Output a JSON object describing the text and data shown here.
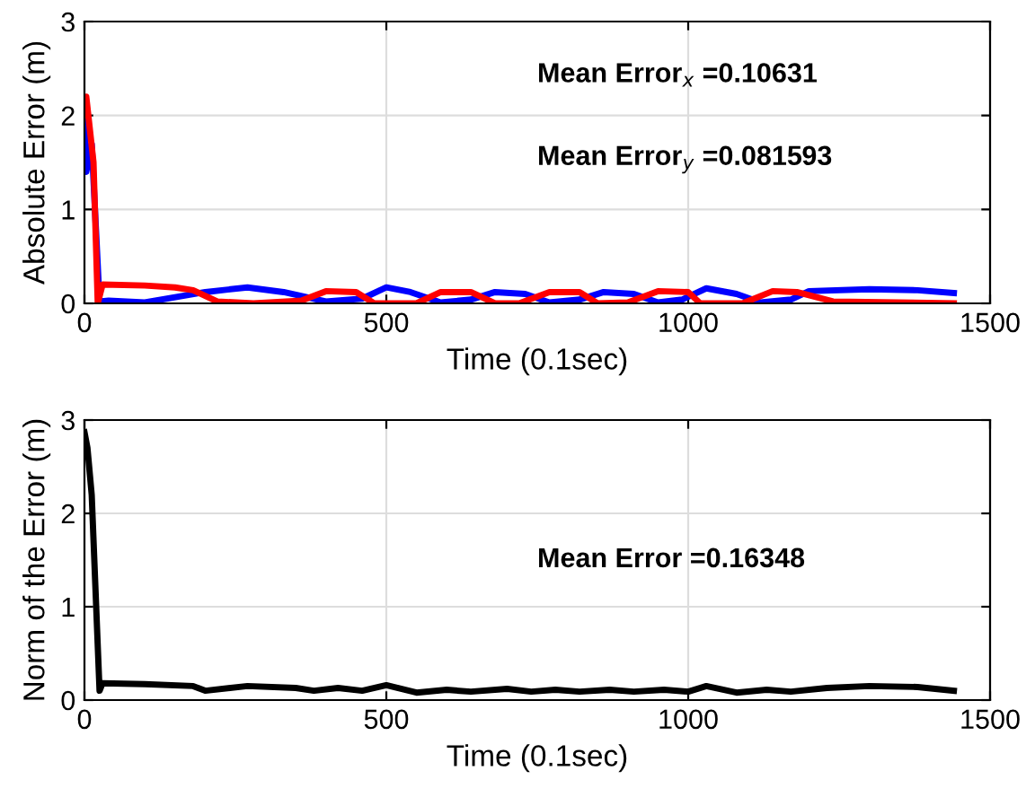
{
  "chart_data": [
    {
      "type": "line",
      "xlabel": "Time (0.1sec)",
      "ylabel": "Absolute Error (m)",
      "xlim": [
        0,
        1500
      ],
      "xticks": [
        0,
        500,
        1000,
        1500
      ],
      "ylim": [
        0,
        3
      ],
      "yticks": [
        0,
        1,
        2,
        3
      ],
      "grid": true,
      "legend": false,
      "line_style": "solid",
      "annotations": [
        "Mean Error$_{x}$ =0.10631",
        "Mean Error$_{y}$ =0.081593"
      ],
      "series": [
        {
          "color": "#0000ff",
          "x": [
            0,
            3,
            12,
            25,
            40,
            100,
            200,
            270,
            330,
            400,
            460,
            500,
            540,
            590,
            640,
            680,
            730,
            770,
            820,
            860,
            910,
            950,
            990,
            1030,
            1080,
            1120,
            1170,
            1200,
            1300,
            1380,
            1440
          ],
          "values": [
            2.0,
            1.4,
            1.7,
            0.02,
            0.03,
            0.01,
            0.12,
            0.17,
            0.12,
            0.02,
            0.05,
            0.17,
            0.12,
            0.01,
            0.04,
            0.12,
            0.1,
            0.01,
            0.04,
            0.12,
            0.1,
            0.01,
            0.04,
            0.16,
            0.1,
            0.01,
            0.04,
            0.13,
            0.15,
            0.14,
            0.11
          ]
        },
        {
          "color": "#ff0000",
          "x": [
            0,
            3,
            15,
            22,
            30,
            100,
            150,
            180,
            220,
            280,
            360,
            400,
            450,
            480,
            550,
            590,
            640,
            680,
            720,
            770,
            820,
            850,
            900,
            950,
            1000,
            1020,
            1090,
            1140,
            1180,
            1240,
            1440
          ],
          "values": [
            2.0,
            2.2,
            1.5,
            0.0,
            0.2,
            0.19,
            0.17,
            0.14,
            0.02,
            0.0,
            0.03,
            0.13,
            0.12,
            0.0,
            0.0,
            0.12,
            0.12,
            0.0,
            0.0,
            0.12,
            0.12,
            0.0,
            0.01,
            0.13,
            0.12,
            0.0,
            0.0,
            0.13,
            0.12,
            0.02,
            0.0
          ]
        }
      ]
    },
    {
      "type": "line",
      "xlabel": "Time (0.1sec)",
      "ylabel": "Norm of the Error (m)",
      "xlim": [
        0,
        1500
      ],
      "xticks": [
        0,
        500,
        1000,
        1500
      ],
      "ylim": [
        0,
        3
      ],
      "yticks": [
        0,
        1,
        2,
        3
      ],
      "grid": true,
      "legend": false,
      "line_style": "solid",
      "annotations": [
        "Mean Error =0.16348"
      ],
      "series": [
        {
          "color": "#000000",
          "x": [
            0,
            5,
            12,
            25,
            30,
            100,
            180,
            200,
            270,
            350,
            380,
            420,
            460,
            500,
            550,
            600,
            640,
            700,
            740,
            780,
            820,
            870,
            910,
            960,
            1000,
            1030,
            1080,
            1130,
            1170,
            1230,
            1300,
            1380,
            1440
          ],
          "values": [
            2.87,
            2.7,
            2.2,
            0.1,
            0.18,
            0.17,
            0.15,
            0.1,
            0.15,
            0.13,
            0.1,
            0.13,
            0.1,
            0.16,
            0.08,
            0.11,
            0.09,
            0.12,
            0.09,
            0.11,
            0.09,
            0.11,
            0.09,
            0.11,
            0.09,
            0.15,
            0.08,
            0.11,
            0.09,
            0.13,
            0.15,
            0.14,
            0.1
          ]
        }
      ]
    }
  ]
}
